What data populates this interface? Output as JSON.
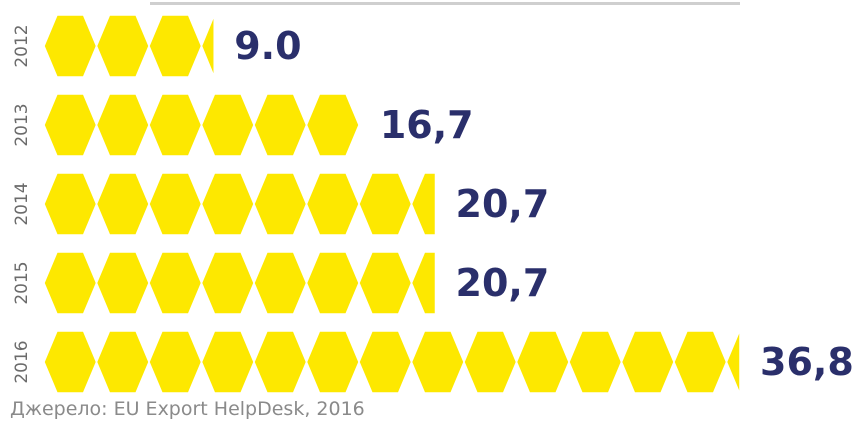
{
  "chart_data": {
    "type": "bar",
    "orientation": "horizontal",
    "categories": [
      "2012",
      "2013",
      "2014",
      "2015",
      "2016"
    ],
    "values": [
      9.0,
      16.7,
      20.7,
      20.7,
      36.8
    ],
    "value_labels": [
      "9.0",
      "16,7",
      "20,7",
      "20,7",
      "36,8"
    ],
    "title": "",
    "xlabel": "",
    "ylabel": "",
    "xlim": [
      0,
      36.8
    ],
    "grid": false,
    "legend": "none",
    "colors": {
      "bar": "#fde800",
      "value_text": "#2a2f6b",
      "year_text": "#6b6b6b"
    },
    "mark_shape": "hexagon"
  },
  "source": "Джерело: EU Export HelpDesk, 2016"
}
